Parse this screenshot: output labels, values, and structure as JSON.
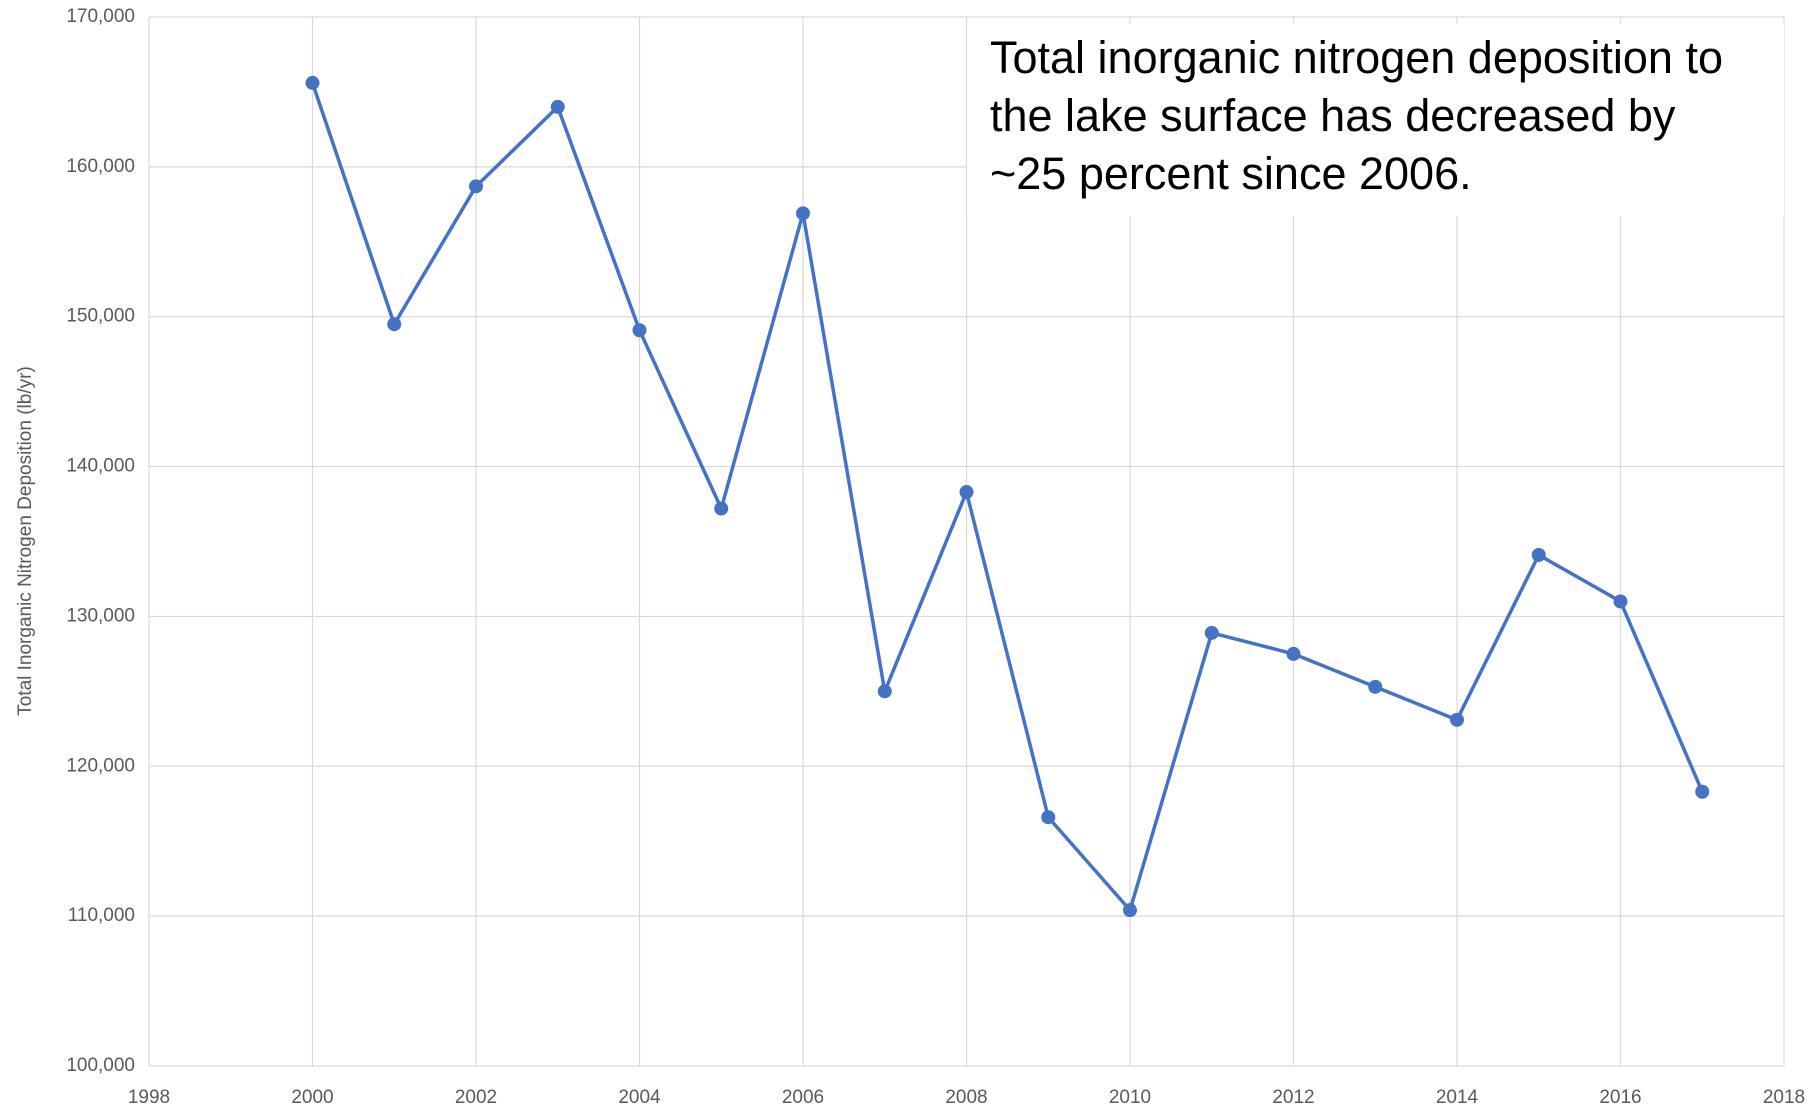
{
  "chart_data": {
    "type": "line",
    "y_label": "Total Inorganic Nitrogen Deposition (lb/yr)",
    "annotation": [
      "Total inorganic nitrogen deposition to",
      "the lake surface has decreased by",
      "~25 percent since 2006."
    ],
    "x": [
      2000,
      2001,
      2002,
      2003,
      2004,
      2005,
      2006,
      2007,
      2008,
      2009,
      2010,
      2011,
      2012,
      2013,
      2014,
      2015,
      2016,
      2017
    ],
    "series": [
      {
        "name": "Total Inorganic Nitrogen Deposition",
        "color": "#4472c4",
        "values": [
          165600,
          149500,
          158700,
          164000,
          149100,
          137200,
          156900,
          125000,
          138300,
          116600,
          110400,
          128900,
          127500,
          125300,
          123100,
          134100,
          131000,
          118300
        ]
      }
    ],
    "xlim": [
      1998,
      2018
    ],
    "xticks": [
      1998,
      2000,
      2002,
      2004,
      2006,
      2008,
      2010,
      2012,
      2014,
      2016,
      2018
    ],
    "ylim": [
      100000,
      170000
    ],
    "yticks": [
      {
        "value": 100000,
        "label": "100,000"
      },
      {
        "value": 110000,
        "label": "110,000"
      },
      {
        "value": 120000,
        "label": "120,000"
      },
      {
        "value": 130000,
        "label": "130,000"
      },
      {
        "value": 140000,
        "label": "140,000"
      },
      {
        "value": 150000,
        "label": "150,000"
      },
      {
        "value": 160000,
        "label": "160,000"
      },
      {
        "value": 170000,
        "label": "170,000"
      }
    ],
    "grid": true
  }
}
